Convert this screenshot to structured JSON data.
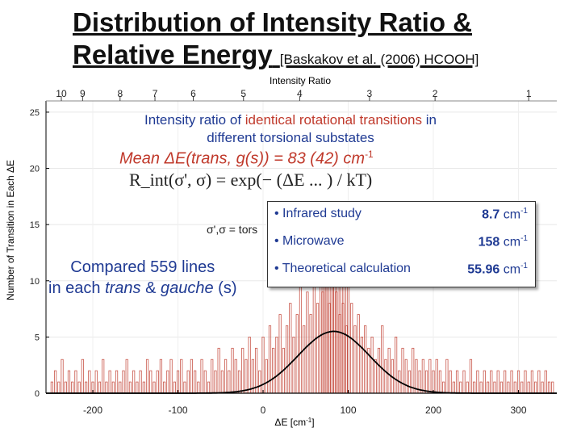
{
  "title": {
    "line1": "Distribution of Intensity Ratio &",
    "line2": "Relative Energy",
    "citation": "[Baskakov et al. (2006) HCOOH]"
  },
  "annotations": {
    "intensity_line1_a": "Intensity ratio of ",
    "intensity_line1_b": "identical rotational transitions",
    "intensity_line1_c": " in",
    "intensity_line2": "different torsional substates",
    "mean_text": "Mean ΔE(trans, g(s))  = 83 (42) cm",
    "mean_sup": "-1",
    "formula": "R_int(σ', σ) = exp(− (ΔE ... ) / kT)",
    "sigma_text": "σ',σ = tors",
    "compared_line1": "Compared 559 lines",
    "compared_line2_a": "in each ",
    "compared_line2_trans": "trans",
    "compared_line2_b": " & ",
    "compared_line2_gauche": "gauche",
    "compared_line2_c": " (s)"
  },
  "results": [
    {
      "label": "• Infrared study",
      "value": "8.7",
      "unit": " cm",
      "sup": "-1"
    },
    {
      "label": "• Microwave",
      "value": "158",
      "unit": " cm",
      "sup": "-1"
    },
    {
      "label": "• Theoretical calculation",
      "value": "55.96",
      "unit": " cm",
      "sup": "-1"
    }
  ],
  "chart_data": {
    "type": "bar",
    "xlabel": "ΔE [cm-1]",
    "ylabel": "Number of Transition in Each ΔE",
    "top_axis_label": "Intensity Ratio",
    "xlim": [
      -255,
      345
    ],
    "ylim": [
      0,
      26
    ],
    "x_ticks": [
      -200,
      -100,
      0,
      100,
      200,
      300
    ],
    "y_ticks": [
      0,
      5,
      10,
      15,
      20,
      25
    ],
    "top_ticks": [
      {
        "label": "10",
        "x": -237
      },
      {
        "label": "9",
        "x": -212
      },
      {
        "label": "8",
        "x": -168
      },
      {
        "label": "7",
        "x": -127
      },
      {
        "label": "6",
        "x": -82
      },
      {
        "label": "5",
        "x": -23
      },
      {
        "label": "4",
        "x": 43
      },
      {
        "label": "3",
        "x": 125
      },
      {
        "label": "2",
        "x": 202
      },
      {
        "label": "1",
        "x": 312
      }
    ],
    "bar_color": "#c0392b",
    "fit_color": "#000000",
    "bars": [
      [
        -248,
        1
      ],
      [
        -244,
        2
      ],
      [
        -240,
        1
      ],
      [
        -236,
        3
      ],
      [
        -232,
        1
      ],
      [
        -228,
        2
      ],
      [
        -224,
        1
      ],
      [
        -220,
        2
      ],
      [
        -216,
        1
      ],
      [
        -212,
        3
      ],
      [
        -208,
        1
      ],
      [
        -204,
        2
      ],
      [
        -200,
        1
      ],
      [
        -196,
        2
      ],
      [
        -192,
        1
      ],
      [
        -188,
        3
      ],
      [
        -184,
        1
      ],
      [
        -180,
        2
      ],
      [
        -176,
        1
      ],
      [
        -172,
        2
      ],
      [
        -168,
        1
      ],
      [
        -164,
        2
      ],
      [
        -160,
        3
      ],
      [
        -156,
        1
      ],
      [
        -152,
        2
      ],
      [
        -148,
        1
      ],
      [
        -144,
        2
      ],
      [
        -140,
        1
      ],
      [
        -136,
        3
      ],
      [
        -132,
        2
      ],
      [
        -128,
        1
      ],
      [
        -124,
        2
      ],
      [
        -120,
        3
      ],
      [
        -116,
        1
      ],
      [
        -112,
        2
      ],
      [
        -108,
        3
      ],
      [
        -104,
        1
      ],
      [
        -100,
        2
      ],
      [
        -96,
        3
      ],
      [
        -92,
        1
      ],
      [
        -88,
        2
      ],
      [
        -84,
        3
      ],
      [
        -80,
        2
      ],
      [
        -76,
        1
      ],
      [
        -72,
        3
      ],
      [
        -68,
        2
      ],
      [
        -64,
        1
      ],
      [
        -60,
        3
      ],
      [
        -56,
        2
      ],
      [
        -52,
        4
      ],
      [
        -48,
        2
      ],
      [
        -44,
        3
      ],
      [
        -40,
        2
      ],
      [
        -36,
        4
      ],
      [
        -32,
        3
      ],
      [
        -28,
        2
      ],
      [
        -24,
        4
      ],
      [
        -20,
        3
      ],
      [
        -16,
        5
      ],
      [
        -12,
        3
      ],
      [
        -8,
        4
      ],
      [
        -4,
        2
      ],
      [
        0,
        5
      ],
      [
        4,
        3
      ],
      [
        8,
        6
      ],
      [
        12,
        4
      ],
      [
        16,
        5
      ],
      [
        20,
        7
      ],
      [
        24,
        4
      ],
      [
        28,
        6
      ],
      [
        32,
        8
      ],
      [
        36,
        5
      ],
      [
        40,
        7
      ],
      [
        44,
        10
      ],
      [
        48,
        6
      ],
      [
        52,
        9
      ],
      [
        56,
        7
      ],
      [
        60,
        13
      ],
      [
        64,
        8
      ],
      [
        68,
        11
      ],
      [
        70,
        9
      ],
      [
        72,
        14
      ],
      [
        74,
        10
      ],
      [
        76,
        12
      ],
      [
        78,
        8
      ],
      [
        80,
        15
      ],
      [
        82,
        10
      ],
      [
        84,
        12
      ],
      [
        86,
        9
      ],
      [
        88,
        14
      ],
      [
        90,
        7
      ],
      [
        92,
        11
      ],
      [
        94,
        8
      ],
      [
        96,
        10
      ],
      [
        98,
        6
      ],
      [
        100,
        12
      ],
      [
        104,
        8
      ],
      [
        108,
        6
      ],
      [
        112,
        7
      ],
      [
        116,
        5
      ],
      [
        120,
        6
      ],
      [
        124,
        4
      ],
      [
        128,
        5
      ],
      [
        132,
        3
      ],
      [
        136,
        4
      ],
      [
        140,
        6
      ],
      [
        144,
        3
      ],
      [
        148,
        4
      ],
      [
        152,
        3
      ],
      [
        156,
        5
      ],
      [
        160,
        2
      ],
      [
        164,
        4
      ],
      [
        168,
        3
      ],
      [
        172,
        2
      ],
      [
        176,
        4
      ],
      [
        180,
        3
      ],
      [
        184,
        2
      ],
      [
        188,
        3
      ],
      [
        192,
        2
      ],
      [
        196,
        3
      ],
      [
        200,
        2
      ],
      [
        204,
        3
      ],
      [
        208,
        2
      ],
      [
        212,
        1
      ],
      [
        216,
        3
      ],
      [
        220,
        2
      ],
      [
        224,
        1
      ],
      [
        228,
        2
      ],
      [
        232,
        1
      ],
      [
        236,
        2
      ],
      [
        240,
        1
      ],
      [
        244,
        3
      ],
      [
        248,
        1
      ],
      [
        252,
        2
      ],
      [
        256,
        1
      ],
      [
        260,
        2
      ],
      [
        264,
        1
      ],
      [
        268,
        2
      ],
      [
        272,
        1
      ],
      [
        276,
        2
      ],
      [
        280,
        1
      ],
      [
        284,
        2
      ],
      [
        288,
        1
      ],
      [
        292,
        2
      ],
      [
        296,
        1
      ],
      [
        300,
        2
      ],
      [
        304,
        1
      ],
      [
        308,
        2
      ],
      [
        312,
        1
      ],
      [
        316,
        2
      ],
      [
        320,
        1
      ],
      [
        324,
        2
      ],
      [
        328,
        1
      ],
      [
        332,
        2
      ],
      [
        336,
        1
      ],
      [
        340,
        1
      ]
    ],
    "fit": {
      "type": "gaussian",
      "amplitude": 5.5,
      "mean": 83,
      "sigma": 42
    }
  }
}
